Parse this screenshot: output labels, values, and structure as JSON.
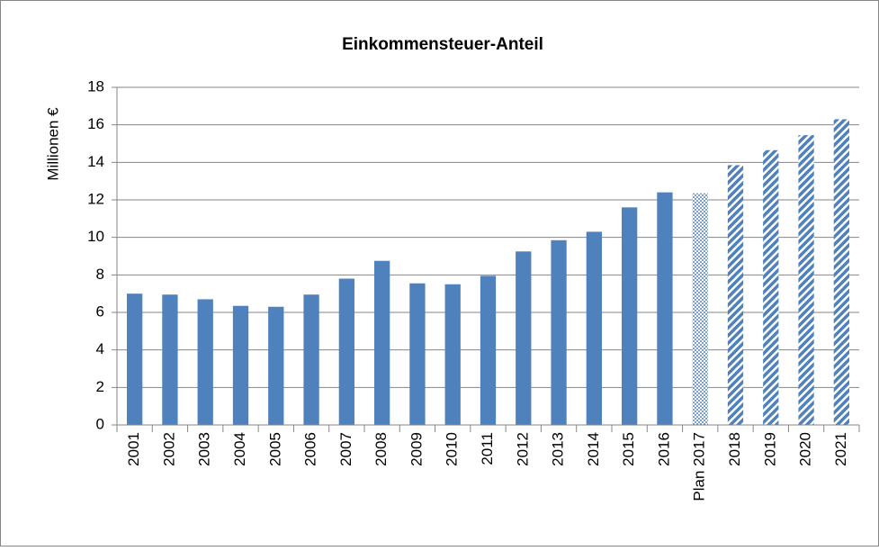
{
  "chart_data": {
    "type": "bar",
    "title": "Einkommensteuer-Anteil",
    "y_label": "Millionen €",
    "categories": [
      "2001",
      "2002",
      "2003",
      "2004",
      "2005",
      "2006",
      "2007",
      "2008",
      "2009",
      "2010",
      "2011",
      "2012",
      "2013",
      "2014",
      "2015",
      "2016",
      "Plan 2017",
      "2018",
      "2019",
      "2020",
      "2021"
    ],
    "values": [
      7.0,
      6.95,
      6.7,
      6.35,
      6.3,
      6.95,
      7.8,
      8.75,
      7.55,
      7.5,
      7.95,
      9.25,
      9.85,
      10.3,
      11.6,
      12.4,
      12.35,
      13.85,
      14.65,
      15.45,
      16.3
    ],
    "fill_styles": [
      "solid",
      "solid",
      "solid",
      "solid",
      "solid",
      "solid",
      "solid",
      "solid",
      "solid",
      "solid",
      "solid",
      "solid",
      "solid",
      "solid",
      "solid",
      "solid",
      "dotted",
      "hatched",
      "hatched",
      "hatched",
      "hatched"
    ],
    "color": "#4f81bd",
    "ylim": [
      0,
      18
    ],
    "yticks": [
      0,
      2,
      4,
      6,
      8,
      10,
      12,
      14,
      16,
      18
    ],
    "grid": true
  }
}
